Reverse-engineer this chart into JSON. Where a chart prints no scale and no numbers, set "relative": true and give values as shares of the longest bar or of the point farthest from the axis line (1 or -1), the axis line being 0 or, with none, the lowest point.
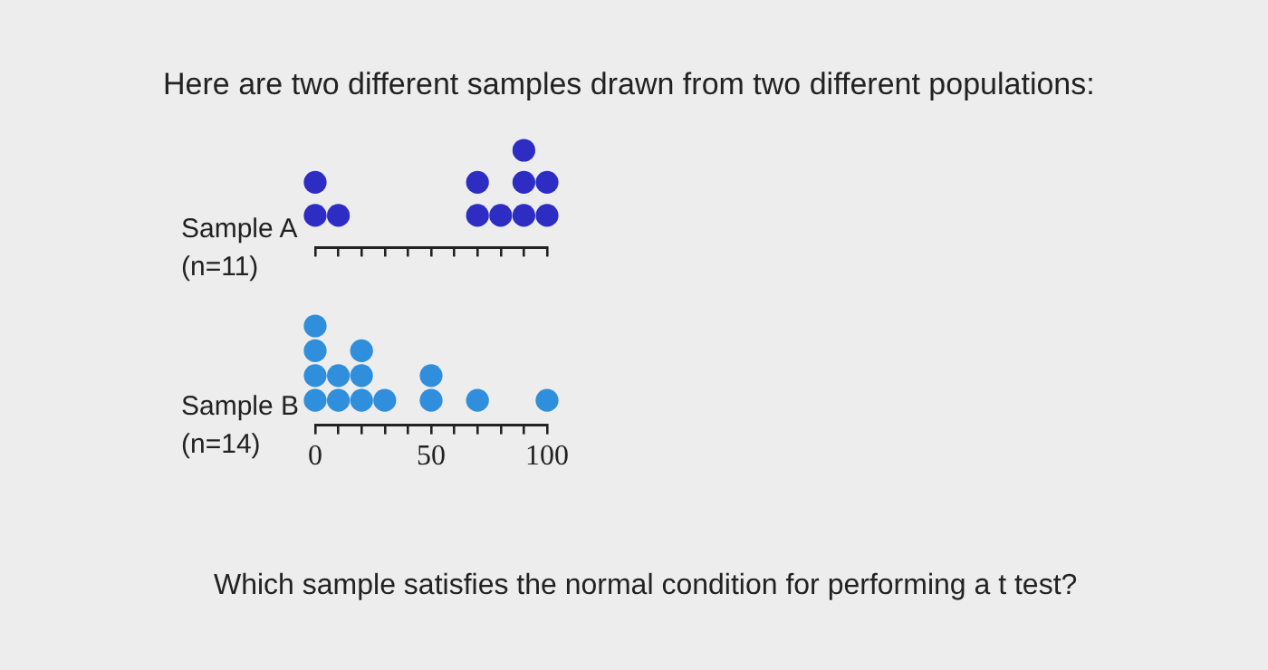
{
  "chart_data": [
    {
      "type": "scatter",
      "title": "Here are two different samples drawn from two different populations:",
      "ylabel": "Sample A (n=11)",
      "tick_labels": false,
      "marker": "circle",
      "legend": false,
      "relative": true,
      "series": [
        {
          "color": "#2d2dc4",
          "x": [
            0,
            0,
            10,
            70,
            70,
            80,
            90,
            90,
            90,
            100,
            100
          ],
          "values": [
            0.33,
            0.67,
            0.33,
            0.33,
            0.67,
            0.33,
            0.33,
            0.67,
            1,
            0.33,
            0.67
          ]
        }
      ],
      "xlim": [
        0,
        100
      ],
      "xticks": [
        0,
        10,
        20,
        30,
        40,
        50,
        60,
        70,
        80,
        90,
        100
      ]
    },
    {
      "type": "scatter",
      "ylabel": "Sample B (n=14)",
      "tick_labels": "x",
      "marker": "circle",
      "legend": false,
      "relative": true,
      "annotations": [
        "Which sample satisfies the normal condition for performing a t test?"
      ],
      "series": [
        {
          "color": "#2f8fdc",
          "x": [
            0,
            0,
            0,
            0,
            10,
            10,
            20,
            20,
            20,
            30,
            50,
            50,
            70,
            100
          ],
          "values": [
            0.25,
            0.5,
            0.75,
            1,
            0.25,
            0.5,
            0.25,
            0.5,
            0.75,
            0.25,
            0.25,
            0.5,
            0.25,
            0.25
          ]
        }
      ],
      "xlim": [
        0,
        100
      ],
      "xticks": [
        0,
        {
          "value": 10,
          "label": null
        },
        {
          "value": 20,
          "label": null
        },
        {
          "value": 30,
          "label": null
        },
        {
          "value": 40,
          "label": null
        },
        50,
        {
          "value": 60,
          "label": null
        },
        {
          "value": 70,
          "label": null
        },
        {
          "value": 80,
          "label": null
        },
        {
          "value": 90,
          "label": null
        },
        100
      ]
    }
  ]
}
